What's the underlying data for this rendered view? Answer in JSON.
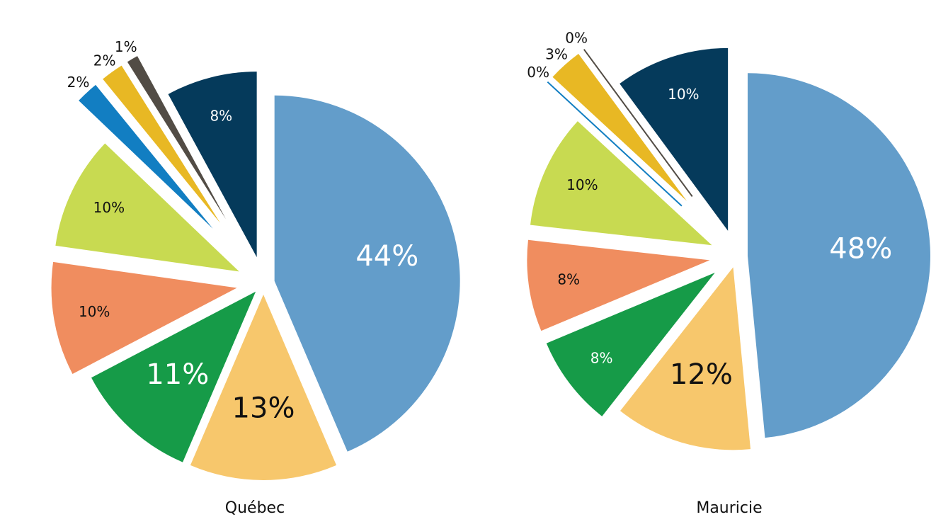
{
  "chart_data": [
    {
      "type": "pie",
      "title": "Québec",
      "values": [
        44,
        13,
        11,
        10,
        10,
        2,
        2,
        1,
        8
      ],
      "value_labels": [
        "44%",
        "13%",
        "11%",
        "10%",
        "10%",
        "2%",
        "2%",
        "1%",
        "8%"
      ],
      "colors": [
        "#639dca",
        "#f7c76c",
        "#169b48",
        "#f08d5f",
        "#c8da51",
        "#127ec2",
        "#e8b824",
        "#524c45",
        "#053a5b"
      ]
    },
    {
      "type": "pie",
      "title": "Mauricie",
      "values": [
        48,
        12,
        8,
        8,
        10,
        0,
        3,
        0,
        10
      ],
      "value_labels": [
        "48%",
        "12%",
        "8%",
        "8%",
        "10%",
        "0%",
        "3%",
        "0%",
        "10%"
      ],
      "colors": [
        "#639dca",
        "#f7c76c",
        "#169b48",
        "#f08d5f",
        "#c8da51",
        "#127ec2",
        "#e8b824",
        "#524c45",
        "#053a5b"
      ]
    }
  ]
}
